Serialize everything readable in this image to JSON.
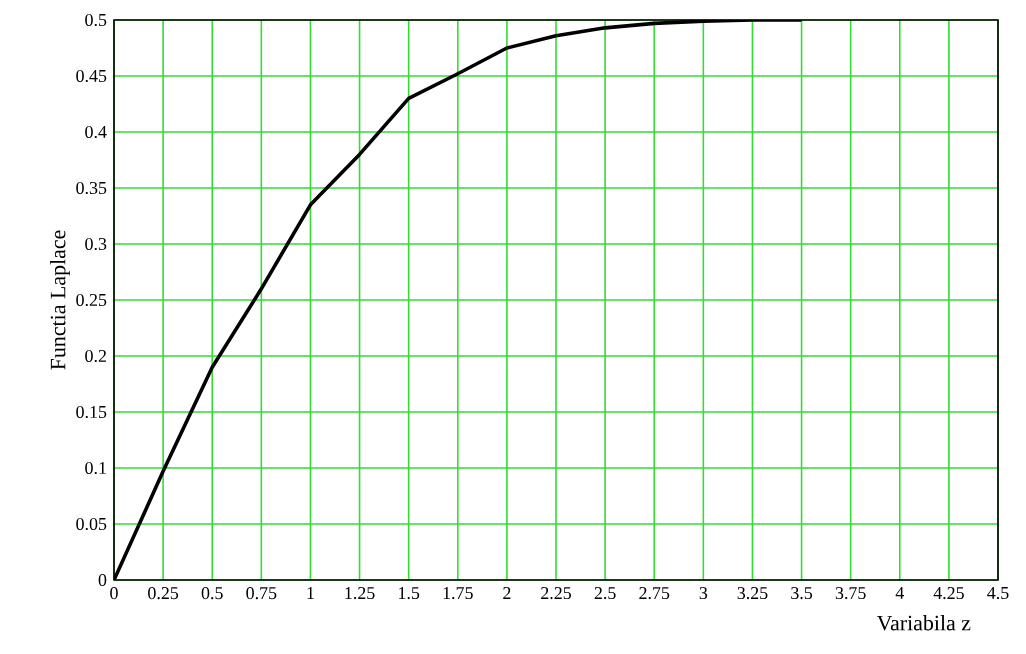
{
  "chart_data": {
    "type": "line",
    "xlabel": "Variabila  z",
    "ylabel": "Functia Laplace",
    "x": [
      0,
      0.25,
      0.5,
      0.75,
      1,
      1.25,
      1.5,
      1.75,
      2,
      2.25,
      2.5,
      2.75,
      3,
      3.25,
      3.5
    ],
    "series": [
      {
        "color": "#000000",
        "values": [
          0,
          0.097,
          0.19,
          0.26,
          0.335,
          0.38,
          0.43,
          0.452,
          0.475,
          0.486,
          0.493,
          0.497,
          0.499,
          0.5,
          0.5
        ]
      }
    ],
    "xlim": [
      0,
      4.5
    ],
    "ylim": [
      0,
      0.5
    ],
    "xticks": [
      0,
      0.25,
      0.5,
      0.75,
      1,
      1.25,
      1.5,
      1.75,
      2,
      2.25,
      2.5,
      2.75,
      3,
      3.25,
      3.5,
      3.75,
      4,
      4.25,
      4.5
    ],
    "yticks": [
      0,
      0.05,
      0.1,
      0.15,
      0.2,
      0.25,
      0.3,
      0.35,
      0.4,
      0.45,
      0.5
    ],
    "grid": true,
    "marker": "none",
    "line_style": "solid"
  }
}
